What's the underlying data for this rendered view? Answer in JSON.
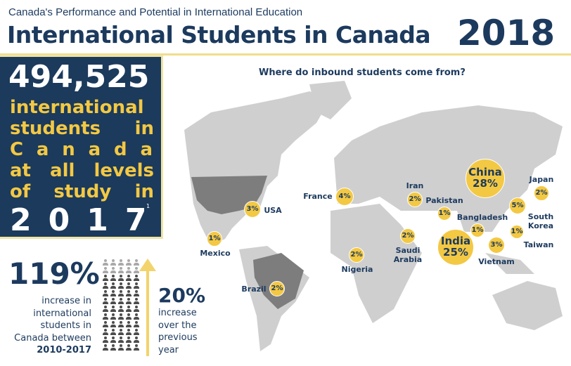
{
  "header": {
    "subtitle": "Canada's Performance and Potential in International Education",
    "title": "International Students in Canada",
    "year": "2018"
  },
  "highlight": {
    "number": "494,525",
    "lines": [
      "international",
      "students in",
      "C a n a d a",
      "at all levels",
      "of study in"
    ],
    "year": "2017",
    "footnote": "1"
  },
  "growth": {
    "total_pct": "119%",
    "total_text": [
      "increase in",
      "international",
      "students in",
      "Canada between"
    ],
    "period": "2010-2017",
    "yearly_pct": "20%",
    "yearly_text": [
      "increase",
      "over the",
      "previous",
      "year"
    ],
    "icon_rows_light": 2,
    "icon_rows_dark": 10
  },
  "map": {
    "question": "Where do inbound students come from?",
    "countries": [
      {
        "name": "China",
        "pct": "28%"
      },
      {
        "name": "India",
        "pct": "25%"
      },
      {
        "name": "South Korea",
        "pct": "5%"
      },
      {
        "name": "France",
        "pct": "4%"
      },
      {
        "name": "USA",
        "pct": "3%"
      },
      {
        "name": "Vietnam",
        "pct": "3%"
      },
      {
        "name": "Iran",
        "pct": "2%"
      },
      {
        "name": "Japan",
        "pct": "2%"
      },
      {
        "name": "Saudi Arabia",
        "pct": "2%"
      },
      {
        "name": "Nigeria",
        "pct": "2%"
      },
      {
        "name": "Brazil",
        "pct": "2%"
      },
      {
        "name": "Mexico",
        "pct": "1%"
      },
      {
        "name": "Pakistan",
        "pct": "1%"
      },
      {
        "name": "Bangladesh",
        "pct": "1%"
      },
      {
        "name": "Taiwan",
        "pct": "1%"
      }
    ]
  },
  "colors": {
    "navy": "#1b3a5c",
    "yellow": "#f3c843",
    "land": "#cfcfcf",
    "highlight_land": "#7d7d7d"
  }
}
